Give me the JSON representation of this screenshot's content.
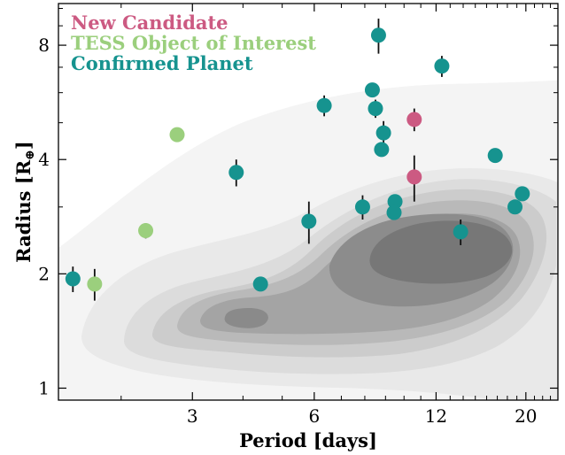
{
  "chart_data": {
    "type": "scatter",
    "xlabel": "Period [days]",
    "ylabel_main": "Radius [R",
    "ylabel_sub": "⊕",
    "ylabel_end": "]",
    "x_scale": "log",
    "y_scale": "log",
    "xlim": [
      1.4,
      24
    ],
    "ylim": [
      0.93,
      10.3
    ],
    "x_ticks": [
      {
        "value": 3,
        "label": "3"
      },
      {
        "value": 6,
        "label": "6"
      },
      {
        "value": 12,
        "label": "12"
      },
      {
        "value": 20,
        "label": "20"
      }
    ],
    "y_ticks": [
      {
        "value": 1,
        "label": "1"
      },
      {
        "value": 2,
        "label": "2"
      },
      {
        "value": 4,
        "label": "4"
      },
      {
        "value": 8,
        "label": "8"
      }
    ],
    "legend_position": "top-left",
    "background": "occurrence-density contours (grayscale), peak near P=12 d, R=2.2",
    "series": [
      {
        "name": "New Candidate",
        "color": "#cc5a82",
        "points": [
          {
            "x": 10.6,
            "y": 5.1,
            "yerr": 0.35
          },
          {
            "x": 10.6,
            "y": 3.6,
            "yerr": 0.5
          }
        ]
      },
      {
        "name": "TESS Object of Interest",
        "color": "#9bcf7d",
        "points": [
          {
            "x": 2.75,
            "y": 4.65,
            "yerr": 0
          },
          {
            "x": 2.3,
            "y": 2.6,
            "yerr": 0.12
          },
          {
            "x": 1.72,
            "y": 1.88,
            "yerr": 0.18
          }
        ]
      },
      {
        "name": "Confirmed Planet",
        "color": "#16938f",
        "points": [
          {
            "x": 1.52,
            "y": 1.94,
            "yerr": 0.15
          },
          {
            "x": 3.85,
            "y": 3.7,
            "yerr": 0.3
          },
          {
            "x": 4.42,
            "y": 1.88,
            "yerr": 0
          },
          {
            "x": 5.82,
            "y": 2.75,
            "yerr": 0.35
          },
          {
            "x": 6.35,
            "y": 5.55,
            "yerr": 0.35
          },
          {
            "x": 7.9,
            "y": 3.0,
            "yerr": 0.22
          },
          {
            "x": 8.35,
            "y": 6.1,
            "yerr": 0
          },
          {
            "x": 8.5,
            "y": 5.45,
            "yerr": 0.3
          },
          {
            "x": 8.65,
            "y": 8.5,
            "yerr": 0.9
          },
          {
            "x": 8.9,
            "y": 4.7,
            "yerr": 0.35
          },
          {
            "x": 8.8,
            "y": 4.25,
            "yerr": 0
          },
          {
            "x": 9.5,
            "y": 3.1,
            "yerr": 0
          },
          {
            "x": 9.45,
            "y": 2.9,
            "yerr": 0
          },
          {
            "x": 12.4,
            "y": 7.05,
            "yerr": 0.45
          },
          {
            "x": 13.8,
            "y": 2.58,
            "yerr": 0.2
          },
          {
            "x": 16.8,
            "y": 4.1,
            "yerr": 0
          },
          {
            "x": 18.8,
            "y": 3.0,
            "yerr": 0
          },
          {
            "x": 19.6,
            "y": 3.25,
            "yerr": 0
          }
        ]
      }
    ]
  }
}
